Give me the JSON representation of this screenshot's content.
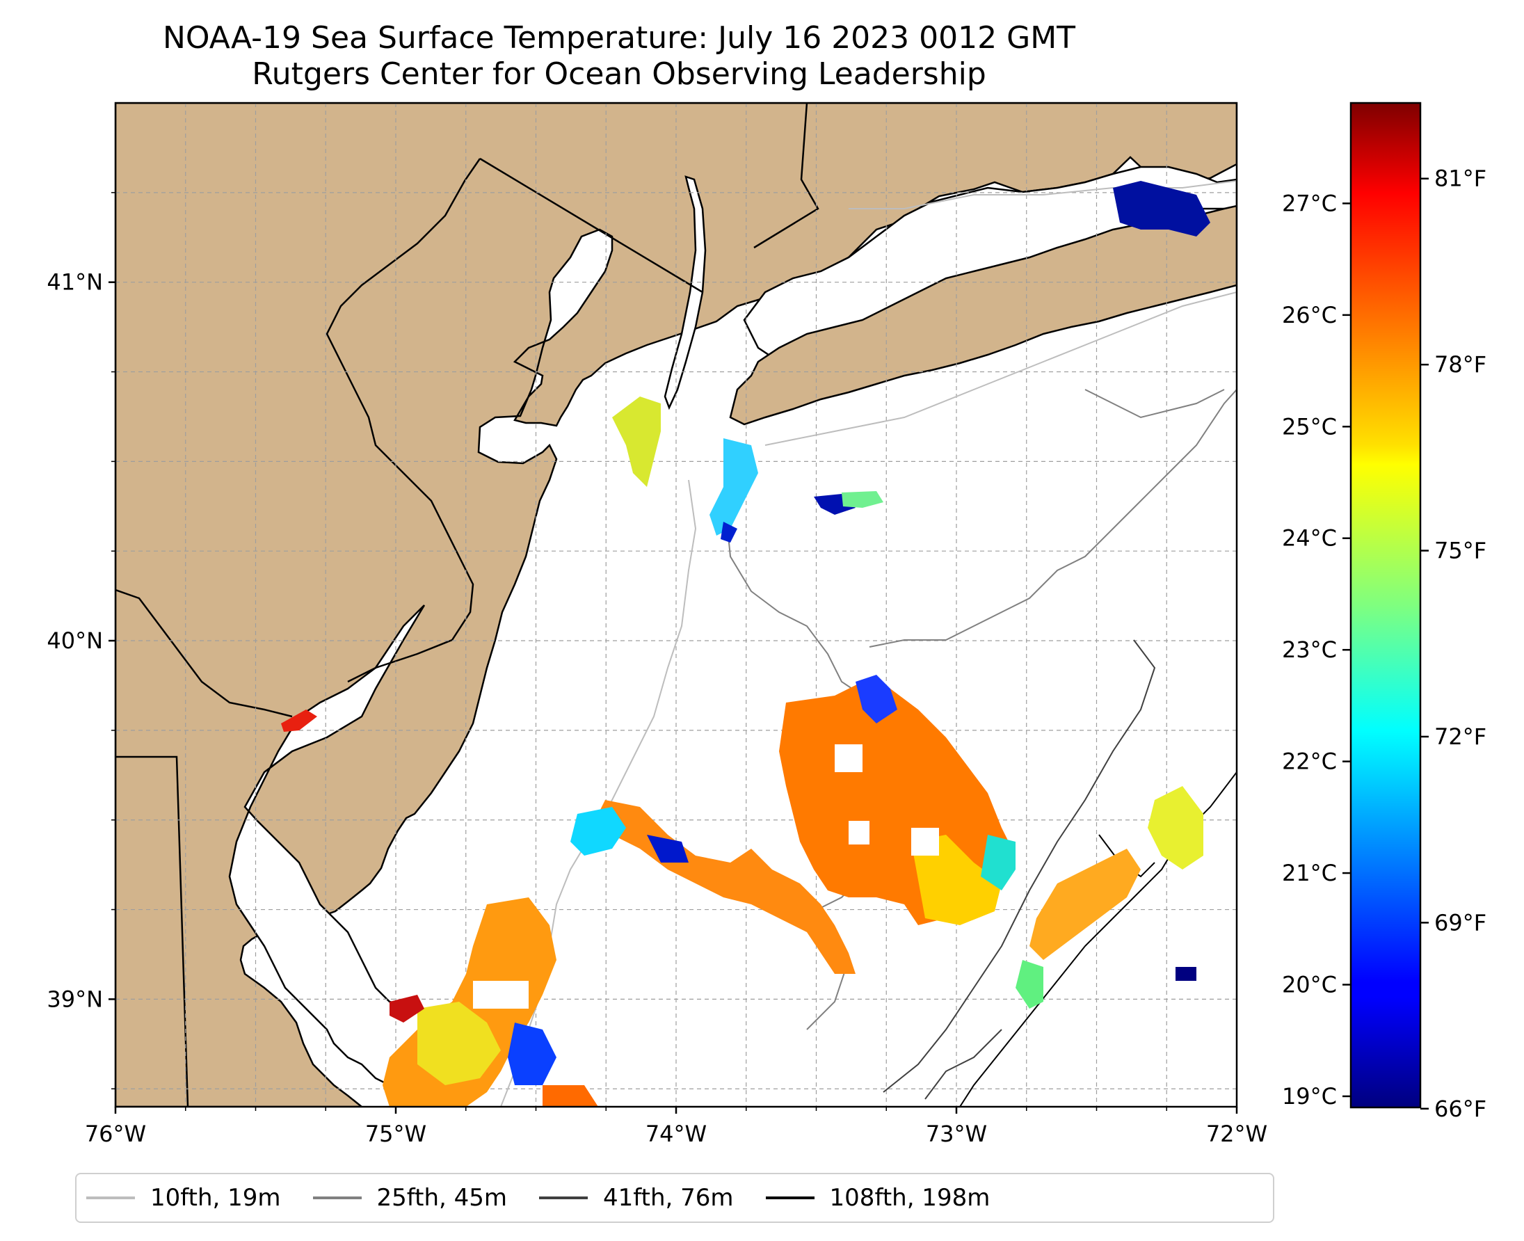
{
  "title": "NOAA-19 Sea Surface Temperature: July 16 2023 0012 GMT",
  "subtitle": "Rutgers Center for Ocean Observing Leadership",
  "chart_data": {
    "type": "heatmap",
    "x_range": [
      -76,
      -72
    ],
    "y_range": [
      38.7,
      41.5
    ],
    "x_ticks": [
      "76°W",
      "75°W",
      "74°W",
      "73°W",
      "72°W"
    ],
    "y_ticks": [
      "41°N",
      "40°N",
      "39°N"
    ],
    "x_tick_values": [
      -76,
      -75,
      -74,
      -73,
      -72
    ],
    "y_tick_values": [
      41,
      40,
      39
    ],
    "grid": true,
    "colormap": "jet",
    "colorbar": {
      "celsius_range": [
        18.9,
        27.9
      ],
      "celsius_ticks": [
        "27°C",
        "26°C",
        "25°C",
        "24°C",
        "23°C",
        "22°C",
        "21°C",
        "20°C",
        "19°C"
      ],
      "celsius_tick_values": [
        27,
        26,
        25,
        24,
        23,
        22,
        21,
        20,
        19
      ],
      "fahrenheit_ticks": [
        "81°F",
        "78°F",
        "75°F",
        "72°F",
        "69°F",
        "66°F"
      ],
      "fahrenheit_tick_values": [
        81,
        78,
        75,
        72,
        69,
        66
      ]
    },
    "legend": {
      "placement": "bottom",
      "entries": [
        {
          "label": "10fth, 19m",
          "color": "#bdbdbd"
        },
        {
          "label": "25fth, 45m",
          "color": "#808080"
        },
        {
          "label": "41fth, 76m",
          "color": "#404040"
        },
        {
          "label": "108fth, 198m",
          "color": "#000000"
        }
      ]
    },
    "land_color": "#d2b48c"
  }
}
